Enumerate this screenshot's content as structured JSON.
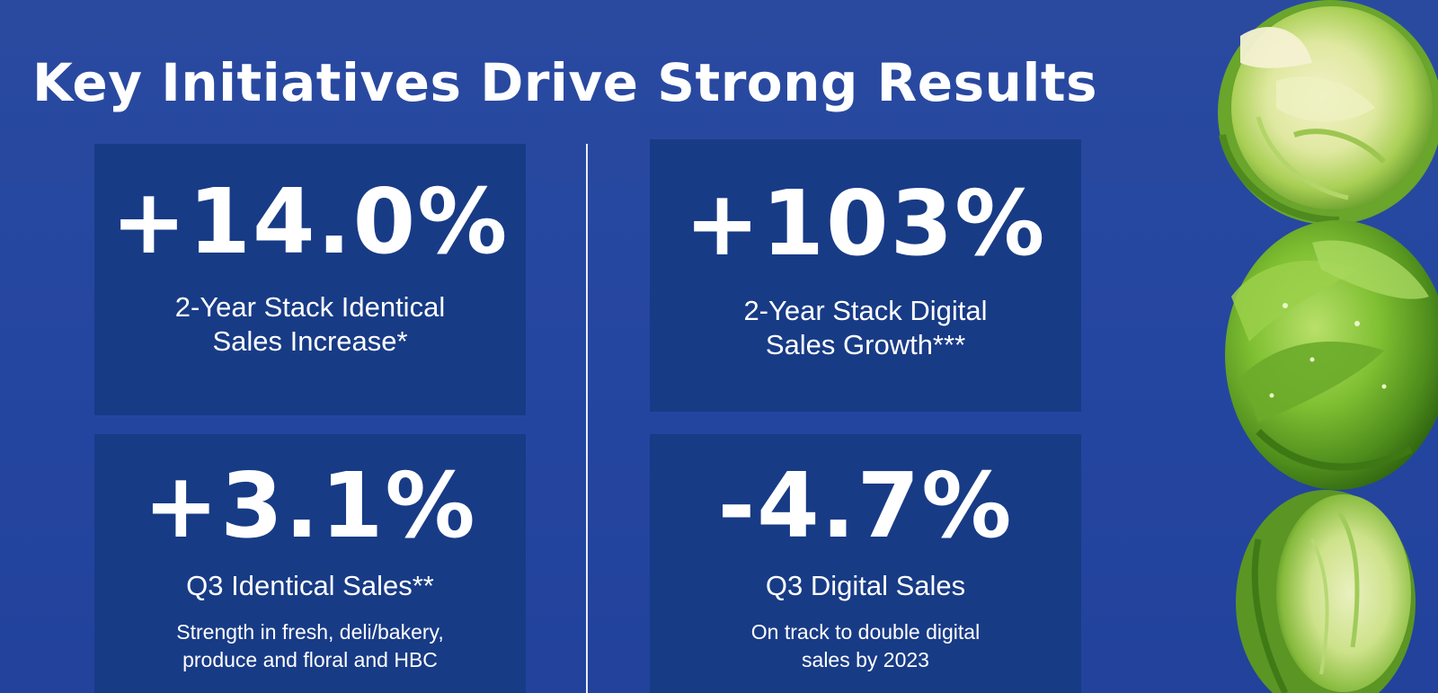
{
  "slide": {
    "title": "Key Initiatives Drive Strong Results"
  },
  "cards": [
    {
      "value": "+14.0%",
      "label_lines": [
        "2-Year Stack Identical",
        "Sales Increase*"
      ],
      "note_lines": []
    },
    {
      "value": "+103%",
      "label_lines": [
        "2-Year Stack Digital",
        "Sales Growth***"
      ],
      "note_lines": []
    },
    {
      "value": "+3.1%",
      "label_lines": [
        "Q3 Identical Sales**"
      ],
      "note_lines": [
        "Strength in fresh, deli/bakery,",
        "produce and floral and HBC"
      ]
    },
    {
      "value": "-4.7%",
      "label_lines": [
        "Q3 Digital Sales"
      ],
      "note_lines": [
        "On track to double digital",
        "sales by 2023"
      ]
    }
  ],
  "colors": {
    "background": "#2546a0",
    "card": "#183b86",
    "text": "#ffffff",
    "sprout_green": "#6fae2e"
  },
  "decor": {
    "image": "brussels-sprouts"
  }
}
